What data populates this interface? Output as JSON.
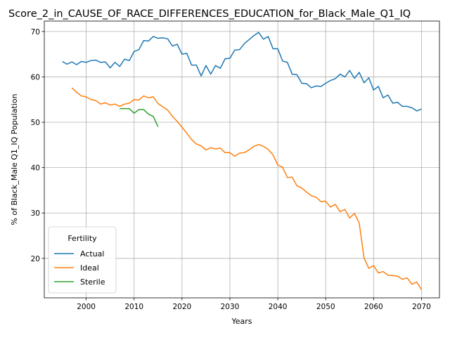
{
  "chart_data": {
    "type": "line",
    "title": "Score_2_in_CAUSE_OF_RACE_DIFFERENCES_EDUCATION_for_Black_Male_Q1_IQ",
    "xlabel": "Years",
    "ylabel": "% of Black_Male Q1_IQ Population",
    "xlim": [
      1991.25,
      2073.75
    ],
    "ylim": [
      11.3,
      72.3
    ],
    "xticks": [
      2000,
      2010,
      2020,
      2030,
      2040,
      2050,
      2060,
      2070
    ],
    "yticks": [
      20,
      30,
      40,
      50,
      60,
      70
    ],
    "grid": true,
    "legend": {
      "title": "Fertility",
      "placement": "lower-left"
    },
    "series": [
      {
        "name": "Actual",
        "color": "#1f77b4",
        "x": [
          1995,
          1996,
          1997,
          1998,
          1999,
          2000,
          2001,
          2002,
          2003,
          2004,
          2005,
          2006,
          2007,
          2008,
          2009,
          2010,
          2011,
          2012,
          2013,
          2014,
          2015,
          2016,
          2017,
          2018,
          2019,
          2020,
          2021,
          2022,
          2023,
          2024,
          2025,
          2026,
          2027,
          2028,
          2029,
          2030,
          2031,
          2032,
          2033,
          2034,
          2035,
          2036,
          2037,
          2038,
          2039,
          2040,
          2041,
          2042,
          2043,
          2044,
          2045,
          2046,
          2047,
          2048,
          2049,
          2050,
          2051,
          2052,
          2053,
          2054,
          2055,
          2056,
          2057,
          2058,
          2059,
          2060,
          2061,
          2062,
          2063,
          2064,
          2065,
          2066,
          2067,
          2068,
          2069,
          2070
        ],
        "y": [
          63.4,
          62.8,
          63.3,
          62.7,
          63.4,
          63.2,
          63.6,
          63.7,
          63.2,
          63.3,
          62.0,
          63.2,
          62.3,
          63.9,
          63.6,
          65.6,
          66.0,
          68.0,
          67.9,
          68.9,
          68.5,
          68.6,
          68.4,
          66.8,
          67.2,
          65.0,
          65.2,
          62.6,
          62.6,
          60.2,
          62.5,
          60.6,
          62.5,
          61.9,
          64.0,
          64.1,
          65.9,
          66.0,
          67.3,
          68.2,
          69.1,
          69.8,
          68.3,
          68.9,
          66.2,
          66.2,
          63.5,
          63.2,
          60.6,
          60.5,
          58.6,
          58.5,
          57.6,
          58.0,
          57.9,
          58.6,
          59.2,
          59.6,
          60.6,
          60.0,
          61.4,
          59.7,
          61.0,
          58.7,
          59.8,
          57.1,
          57.9,
          55.4,
          56.0,
          54.2,
          54.4,
          53.5,
          53.5,
          53.2,
          52.5,
          52.9
        ]
      },
      {
        "name": "Ideal",
        "color": "#ff7f0e",
        "x": [
          1997,
          1998,
          1999,
          2000,
          2001,
          2002,
          2003,
          2004,
          2005,
          2006,
          2007,
          2008,
          2009,
          2010,
          2011,
          2012,
          2013,
          2014,
          2015,
          2016,
          2017,
          2018,
          2019,
          2020,
          2021,
          2022,
          2023,
          2024,
          2025,
          2026,
          2027,
          2028,
          2029,
          2030,
          2031,
          2032,
          2033,
          2034,
          2035,
          2036,
          2037,
          2038,
          2039,
          2040,
          2041,
          2042,
          2043,
          2044,
          2045,
          2046,
          2047,
          2048,
          2049,
          2050,
          2051,
          2052,
          2053,
          2054,
          2055,
          2056,
          2057,
          2058,
          2059,
          2060,
          2061,
          2062,
          2063,
          2064,
          2065,
          2066,
          2067,
          2068,
          2069,
          2070
        ],
        "y": [
          57.6,
          56.6,
          55.8,
          55.6,
          55.0,
          54.8,
          54.0,
          54.3,
          53.8,
          54.0,
          53.5,
          54.0,
          54.2,
          55.0,
          54.9,
          55.8,
          55.4,
          55.6,
          54.1,
          53.4,
          52.7,
          51.3,
          50.2,
          48.9,
          47.6,
          46.2,
          45.2,
          44.8,
          43.9,
          44.4,
          44.1,
          44.3,
          43.3,
          43.3,
          42.5,
          43.2,
          43.3,
          43.9,
          44.7,
          45.1,
          44.7,
          44.0,
          42.8,
          40.6,
          40.1,
          37.8,
          37.9,
          36.0,
          35.5,
          34.6,
          33.8,
          33.5,
          32.5,
          32.6,
          31.3,
          31.9,
          30.3,
          30.8,
          28.9,
          29.9,
          27.8,
          20.1,
          17.8,
          18.4,
          16.8,
          17.1,
          16.3,
          16.2,
          16.1,
          15.4,
          15.7,
          14.3,
          14.8,
          13.1
        ]
      },
      {
        "name": "Sterile",
        "color": "#2ca02c",
        "x": [
          2007,
          2008,
          2009,
          2010,
          2011,
          2012,
          2013,
          2014,
          2015
        ],
        "y": [
          53.0,
          53.0,
          53.0,
          52.0,
          52.8,
          52.8,
          51.8,
          51.3,
          49.0
        ]
      }
    ]
  }
}
